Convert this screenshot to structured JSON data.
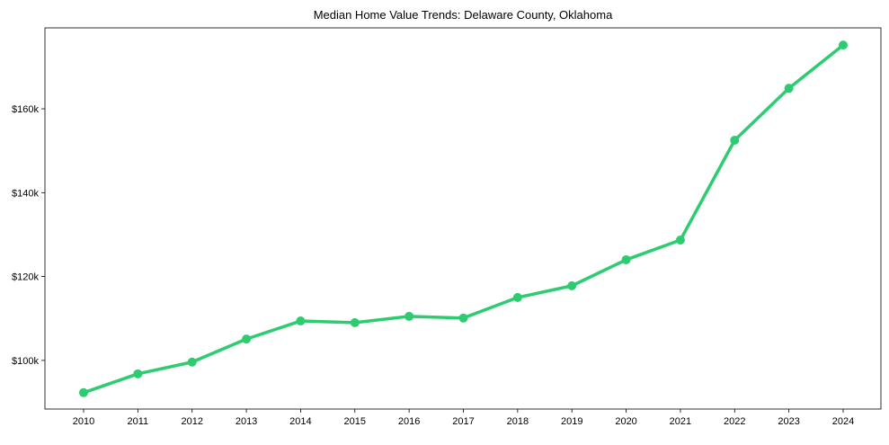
{
  "chart_data": {
    "type": "line",
    "title": "Median Home Value Trends: Delaware County, Oklahoma",
    "xlabel": "",
    "ylabel": "",
    "x": [
      2010,
      2011,
      2012,
      2013,
      2014,
      2015,
      2016,
      2017,
      2018,
      2019,
      2020,
      2021,
      2022,
      2023,
      2024
    ],
    "series": [
      {
        "name": "Median Home Value",
        "color": "#2ecc71",
        "values": [
          92300,
          96800,
          99600,
          105100,
          109400,
          109000,
          110500,
          110100,
          115000,
          117800,
          124000,
          128700,
          152500,
          164900,
          175200
        ]
      }
    ],
    "ylim": [
      88400,
      179300
    ],
    "yticks": [
      100000,
      120000,
      140000,
      160000
    ],
    "ytick_labels": [
      "$100k",
      "$120k",
      "$140k",
      "$160k"
    ],
    "xtick_labels": [
      "2010",
      "2011",
      "2012",
      "2013",
      "2014",
      "2015",
      "2016",
      "2017",
      "2018",
      "2019",
      "2020",
      "2021",
      "2022",
      "2023",
      "2024"
    ],
    "grid": false,
    "legend": "none"
  }
}
